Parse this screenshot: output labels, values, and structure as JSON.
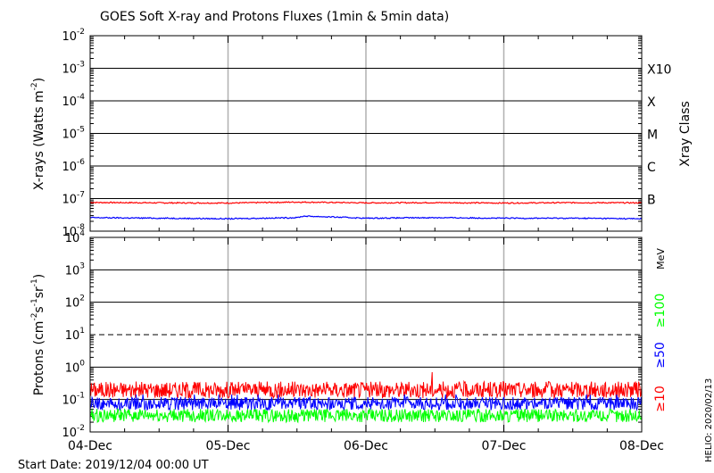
{
  "chart_data": {
    "title": "GOES Soft X-ray and Protons Fluxes   (1min & 5min data)",
    "start_date_text": "Start Date: 2019/12/04 00:00 UT",
    "side_stamp": "HELIO: 2020/02/13",
    "x_ticks": [
      "04-Dec",
      "05-Dec",
      "06-Dec",
      "07-Dec",
      "08-Dec"
    ],
    "xlim": [
      0,
      4
    ],
    "panels": [
      {
        "type": "line",
        "y_scale": "log",
        "ylim": [
          1e-08,
          0.01
        ],
        "y_ticks": [
          {
            "base": "10",
            "exp": "-2"
          },
          {
            "base": "10",
            "exp": "-3"
          },
          {
            "base": "10",
            "exp": "-4"
          },
          {
            "base": "10",
            "exp": "-5"
          },
          {
            "base": "10",
            "exp": "-6"
          },
          {
            "base": "10",
            "exp": "-7"
          },
          {
            "base": "10",
            "exp": "-8"
          }
        ],
        "ylabel": "X-rays (Watts m",
        "ylabel_exp": "-2",
        "ylabel_close": ")",
        "right_label": "Xray Class",
        "class_labels": [
          "X10",
          "X",
          "M",
          "C",
          "B"
        ],
        "series": [
          {
            "color": "#ff0000",
            "level": 7.5e-08,
            "x": [
              0,
              0.5,
              1,
              1.5,
              2,
              2.5,
              3,
              3.5,
              4
            ],
            "y": [
              7.6e-08,
              7.4e-08,
              7.3e-08,
              7.8e-08,
              7.4e-08,
              7.5e-08,
              7.3e-08,
              7.5e-08,
              7.4e-08
            ]
          },
          {
            "color": "#0000ff",
            "level": 2.5e-08,
            "x": [
              0,
              0.5,
              1,
              1.5,
              1.55,
              2,
              2.5,
              3,
              3.5,
              4
            ],
            "y": [
              2.6e-08,
              2.5e-08,
              2.4e-08,
              2.6e-08,
              2.9e-08,
              2.5e-08,
              2.6e-08,
              2.5e-08,
              2.5e-08,
              2.4e-08
            ]
          }
        ]
      },
      {
        "type": "line",
        "y_scale": "log",
        "ylim": [
          0.01,
          10000
        ],
        "y_ticks": [
          {
            "base": "10",
            "exp": "4"
          },
          {
            "base": "10",
            "exp": "3"
          },
          {
            "base": "10",
            "exp": "2"
          },
          {
            "base": "10",
            "exp": "1"
          },
          {
            "base": "10",
            "exp": "0"
          },
          {
            "base": "10",
            "exp": "-1"
          },
          {
            "base": "10",
            "exp": "-2"
          }
        ],
        "ylabel": "Protons (cm",
        "ylabel_exp1": "-2",
        "ylabel_mid": "s",
        "ylabel_exp2": "-1",
        "ylabel_mid2": "sr",
        "ylabel_exp3": "-1",
        "ylabel_close": ")",
        "unit_label": "MeV",
        "threshold": 10,
        "series": [
          {
            "name": "≥10",
            "color": "#ff0000",
            "level": 0.2,
            "spread": 1.8
          },
          {
            "name": "≥50",
            "color": "#0000ff",
            "level": 0.075,
            "spread": 1.6
          },
          {
            "name": "≥100",
            "color": "#00ff00",
            "level": 0.032,
            "spread": 1.6
          }
        ]
      }
    ]
  }
}
